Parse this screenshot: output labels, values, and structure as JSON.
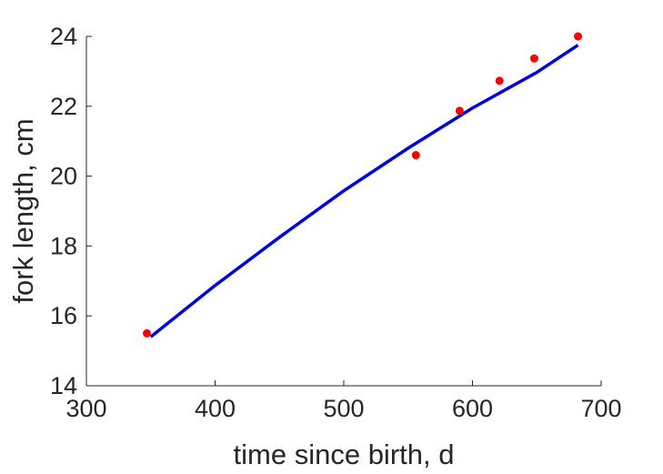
{
  "chart_data": {
    "type": "scatter",
    "xlabel": "time since birth, d",
    "ylabel": "fork length, cm",
    "xlim": [
      300,
      700
    ],
    "ylim": [
      14,
      24
    ],
    "xticks": [
      300,
      400,
      500,
      600,
      700
    ],
    "yticks": [
      14,
      16,
      18,
      20,
      22,
      24
    ],
    "grid": false,
    "series": [
      {
        "kind": "points",
        "color": "#ff0000",
        "points": [
          {
            "x": 347,
            "y": 15.5
          },
          {
            "x": 556,
            "y": 20.6
          },
          {
            "x": 590,
            "y": 21.87
          },
          {
            "x": 621,
            "y": 22.73
          },
          {
            "x": 648,
            "y": 23.37
          },
          {
            "x": 682,
            "y": 24.0
          }
        ]
      },
      {
        "kind": "curve",
        "color": "#0000e6",
        "points": [
          {
            "x": 350,
            "y": 15.4
          },
          {
            "x": 400,
            "y": 16.87
          },
          {
            "x": 450,
            "y": 18.25
          },
          {
            "x": 500,
            "y": 19.58
          },
          {
            "x": 550,
            "y": 20.8
          },
          {
            "x": 600,
            "y": 21.95
          },
          {
            "x": 650,
            "y": 22.97
          },
          {
            "x": 682,
            "y": 23.75
          }
        ]
      }
    ]
  }
}
